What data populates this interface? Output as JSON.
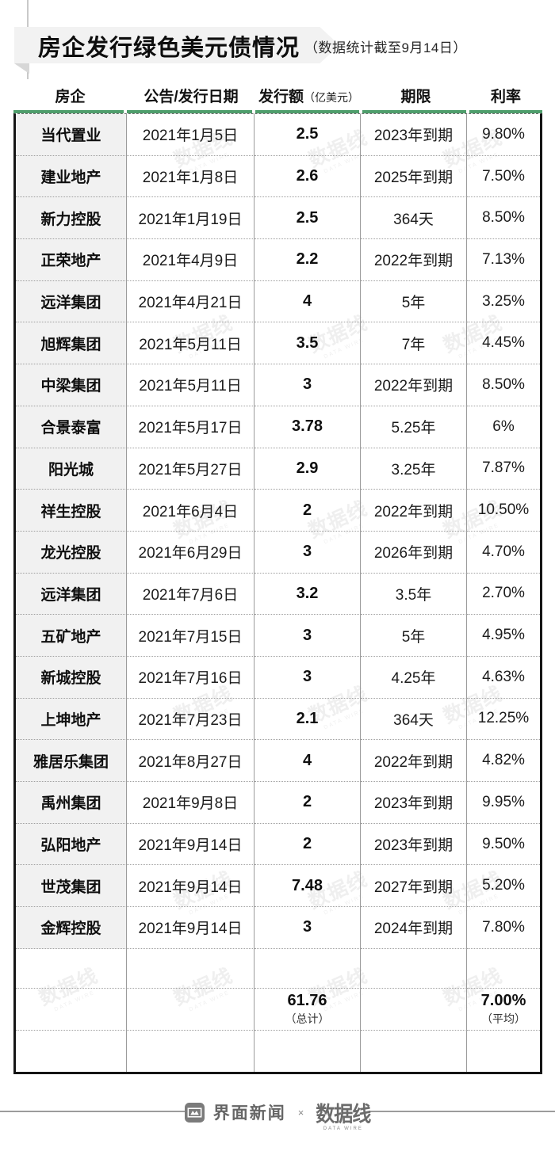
{
  "title": {
    "main": "房企发行绿色美元债情况",
    "subtitle": "（数据统计截至9月14日）"
  },
  "table": {
    "headers": [
      {
        "label": "房企",
        "sub": ""
      },
      {
        "label": "公告/发行日期",
        "sub": ""
      },
      {
        "label": "发行额",
        "sub": "（亿美元）"
      },
      {
        "label": "期限",
        "sub": ""
      },
      {
        "label": "利率",
        "sub": ""
      }
    ]
  },
  "chart_data": {
    "type": "table",
    "title": "房企发行绿色美元债情况",
    "subtitle": "（数据统计截至9月14日）",
    "columns": [
      "房企",
      "公告/发行日期",
      "发行额（亿美元）",
      "期限",
      "利率"
    ],
    "rows": [
      [
        "当代置业",
        "2021年1月5日",
        "2.5",
        "2023年到期",
        "9.80%"
      ],
      [
        "建业地产",
        "2021年1月8日",
        "2.6",
        "2025年到期",
        "7.50%"
      ],
      [
        "新力控股",
        "2021年1月19日",
        "2.5",
        "364天",
        "8.50%"
      ],
      [
        "正荣地产",
        "2021年4月9日",
        "2.2",
        "2022年到期",
        "7.13%"
      ],
      [
        "远洋集团",
        "2021年4月21日",
        "4",
        "5年",
        "3.25%"
      ],
      [
        "旭辉集团",
        "2021年5月11日",
        "3.5",
        "7年",
        "4.45%"
      ],
      [
        "中梁集团",
        "2021年5月11日",
        "3",
        "2022年到期",
        "8.50%"
      ],
      [
        "合景泰富",
        "2021年5月17日",
        "3.78",
        "5.25年",
        "6%"
      ],
      [
        "阳光城",
        "2021年5月27日",
        "2.9",
        "3.25年",
        "7.87%"
      ],
      [
        "祥生控股",
        "2021年6月4日",
        "2",
        "2022年到期",
        "10.50%"
      ],
      [
        "龙光控股",
        "2021年6月29日",
        "3",
        "2026年到期",
        "4.70%"
      ],
      [
        "远洋集团",
        "2021年7月6日",
        "3.2",
        "3.5年",
        "2.70%"
      ],
      [
        "五矿地产",
        "2021年7月15日",
        "3",
        "5年",
        "4.95%"
      ],
      [
        "新城控股",
        "2021年7月16日",
        "3",
        "4.25年",
        "4.63%"
      ],
      [
        "上坤地产",
        "2021年7月23日",
        "2.1",
        "364天",
        "12.25%"
      ],
      [
        "雅居乐集团",
        "2021年8月27日",
        "4",
        "2022年到期",
        "4.82%"
      ],
      [
        "禹州集团",
        "2021年9月8日",
        "2",
        "2023年到期",
        "9.95%"
      ],
      [
        "弘阳地产",
        "2021年9月14日",
        "2",
        "2023年到期",
        "9.50%"
      ],
      [
        "世茂集团",
        "2021年9月14日",
        "7.48",
        "2027年到期",
        "5.20%"
      ],
      [
        "金辉控股",
        "2021年9月14日",
        "3",
        "2024年到期",
        "7.80%"
      ]
    ],
    "summary": {
      "total_amount": "61.76",
      "total_label": "（总计）",
      "avg_rate": "7.00%",
      "avg_label": "（平均）"
    }
  },
  "watermark": {
    "text": "数据线",
    "sub": "DATA WIRE"
  },
  "footer": {
    "brand_left": "界面新闻",
    "separator": "×",
    "brand_right": "数据线",
    "brand_right_sub": "DATA WIRE"
  },
  "colors": {
    "accent_green": "#4f9e6c",
    "first_col_bg": "#f1f1f1",
    "table_border": "#151515",
    "banner_bg": "#f2f2f2"
  }
}
